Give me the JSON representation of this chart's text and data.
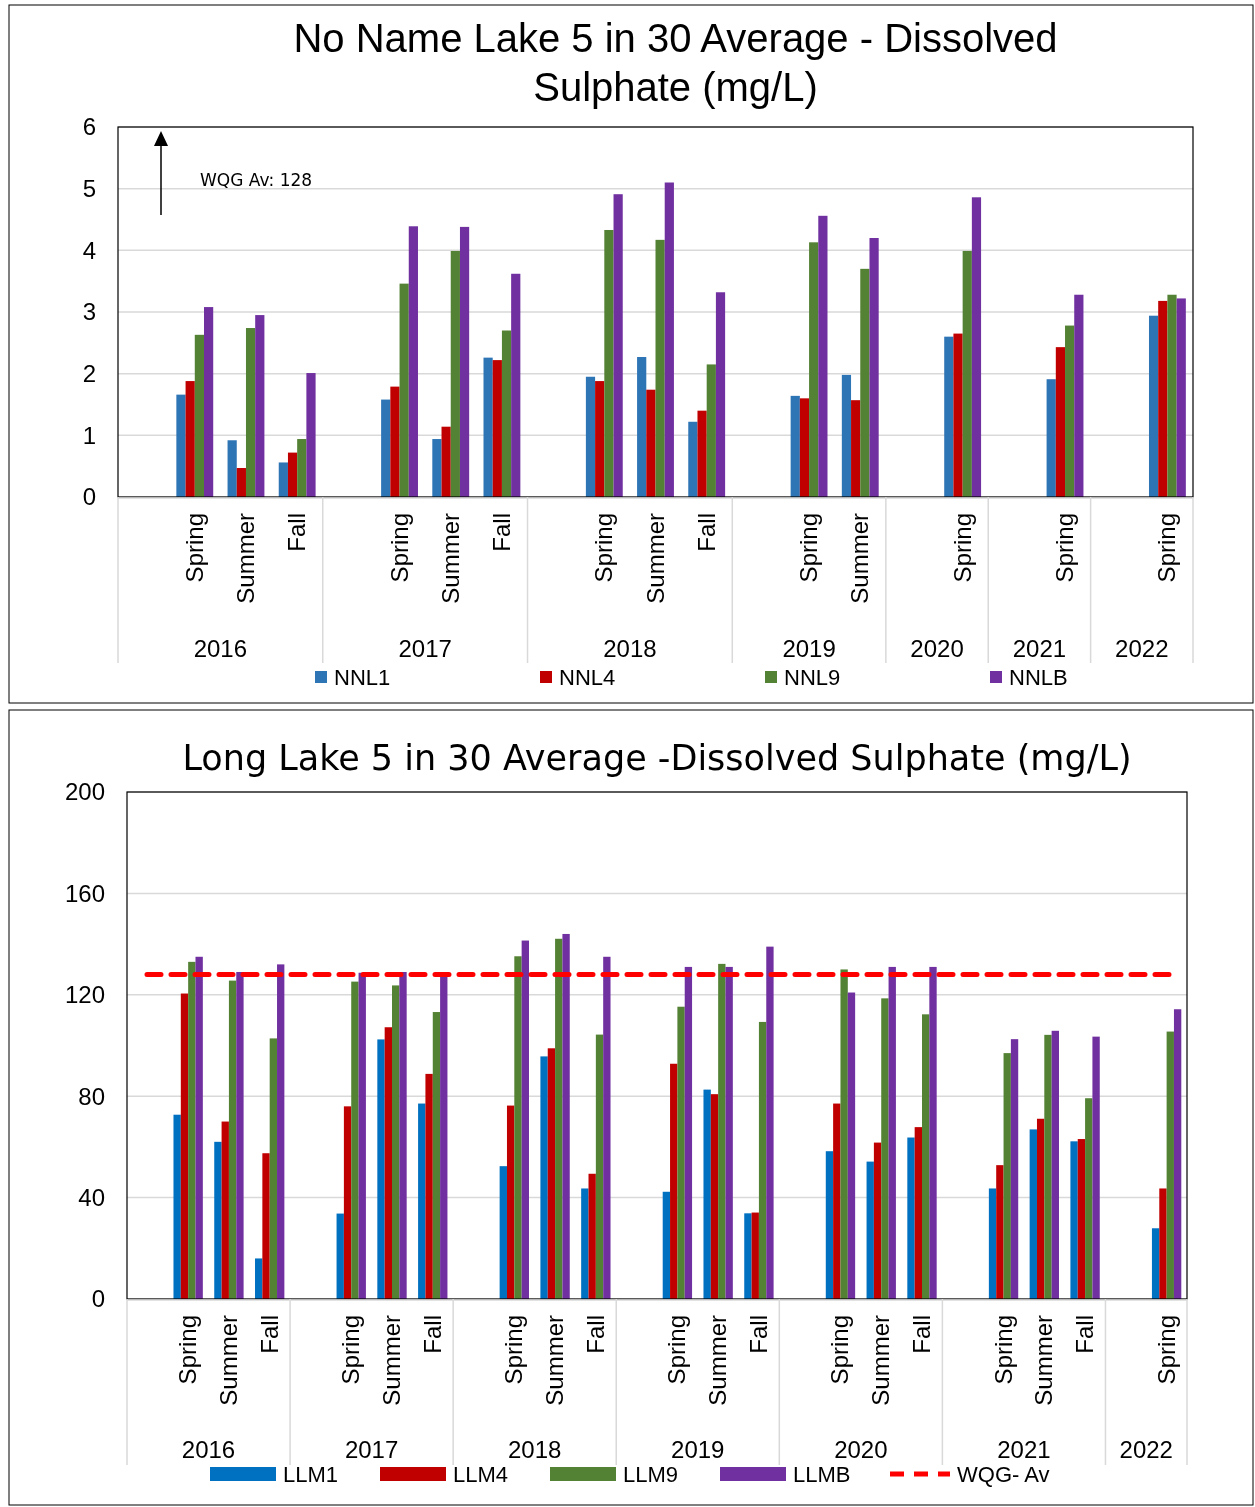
{
  "chart_data": [
    {
      "type": "bar",
      "title": "No Name Lake 5 in 30 Average - Dissolved Sulphate (mg/L)",
      "categories": [
        null,
        "Spring",
        "Summer",
        "Fall",
        null,
        "Spring",
        "Summer",
        "Fall",
        null,
        "Spring",
        "Summer",
        "Fall",
        null,
        "Spring",
        "Summer",
        null,
        "Spring",
        null,
        "Spring",
        null,
        "Spring"
      ],
      "series": [
        {
          "name": "NNL1",
          "color": "#2e75b6",
          "values": [
            null,
            1.66,
            0.92,
            0.56,
            null,
            1.58,
            0.94,
            2.26,
            null,
            1.95,
            2.27,
            1.22,
            null,
            1.64,
            1.98,
            null,
            2.6,
            null,
            1.91,
            null,
            2.94
          ]
        },
        {
          "name": "NNL4",
          "color": "#c00000",
          "values": [
            null,
            1.88,
            0.47,
            0.72,
            null,
            1.79,
            1.14,
            2.22,
            null,
            1.88,
            1.74,
            1.4,
            null,
            1.6,
            1.57,
            null,
            2.65,
            null,
            2.43,
            null,
            3.18
          ]
        },
        {
          "name": "NNL9",
          "color": "#548235",
          "values": [
            null,
            2.63,
            2.74,
            0.94,
            null,
            3.46,
            3.99,
            2.7,
            null,
            4.33,
            4.17,
            2.15,
            null,
            4.13,
            3.7,
            null,
            3.99,
            null,
            2.78,
            null,
            3.28
          ]
        },
        {
          "name": "NNLB",
          "color": "#7030a0",
          "values": [
            null,
            3.08,
            2.95,
            2.01,
            null,
            4.39,
            4.38,
            3.62,
            null,
            4.91,
            5.1,
            3.32,
            null,
            4.56,
            4.2,
            null,
            4.86,
            null,
            3.28,
            null,
            3.22
          ]
        }
      ],
      "ylim": [
        0,
        6
      ],
      "yticks": [
        0,
        1,
        2,
        3,
        4,
        5,
        6
      ],
      "grid": "y",
      "legend": "bottom",
      "annotations": [
        "2016",
        "2017",
        "2018",
        "2019",
        "2020",
        "2021",
        "2022",
        "WQG Av: 128"
      ]
    },
    {
      "type": "bar",
      "title": "Long Lake 5 in 30 Average -Dissolved Sulphate (mg/L)",
      "categories": [
        null,
        "Spring",
        "Summer",
        "Fall",
        null,
        "Spring",
        "Summer",
        "Fall",
        null,
        "Spring",
        "Summer",
        "Fall",
        null,
        "Spring",
        "Summer",
        "Fall",
        null,
        "Spring",
        "Summer",
        "Fall",
        null,
        "Spring",
        "Summer",
        "Fall",
        null,
        "Spring"
      ],
      "series": [
        {
          "name": "LLM1",
          "color": "#0070c0",
          "values": [
            null,
            72.7,
            62,
            16,
            null,
            33.7,
            102.4,
            77.1,
            null,
            52.4,
            95.7,
            43.6,
            null,
            42.3,
            82.6,
            33.8,
            null,
            58.3,
            54.2,
            63.7,
            null,
            43.6,
            66.9,
            62.2,
            null,
            27.9
          ]
        },
        {
          "name": "LLM4",
          "color": "#c00000",
          "values": [
            null,
            120.5,
            70,
            57.5,
            null,
            76,
            107.2,
            88.8,
            null,
            76.3,
            98.9,
            49.4,
            null,
            92.8,
            80.8,
            34.1,
            null,
            77.1,
            61.7,
            67.8,
            null,
            52.8,
            71.1,
            63.1,
            null,
            43.6
          ]
        },
        {
          "name": "LLM9",
          "color": "#548235",
          "values": [
            null,
            133,
            125.6,
            102.8,
            null,
            125.2,
            123.7,
            113.2,
            null,
            135.2,
            142.1,
            104.3,
            null,
            115.3,
            132.2,
            109.3,
            null,
            130,
            118.6,
            112.3,
            null,
            97,
            104.2,
            79.2,
            null,
            105.5
          ]
        },
        {
          "name": "LLMB",
          "color": "#7030a0",
          "values": [
            null,
            135,
            129,
            132,
            null,
            128.7,
            129,
            128,
            null,
            141.4,
            144,
            135,
            null,
            131,
            131,
            139,
            null,
            120.9,
            131,
            131,
            null,
            102.5,
            105.8,
            103.5,
            null,
            114.3
          ]
        }
      ],
      "ylim": [
        0,
        200
      ],
      "yticks": [
        0,
        40,
        80,
        120,
        160,
        200
      ],
      "grid": "y",
      "legend": "bottom",
      "ref_lines": [
        {
          "axis": "y",
          "value": 128,
          "label": "WQG- Av",
          "color": "#ff0000",
          "line_style": "dashed"
        }
      ],
      "annotations": [
        "2016",
        "2017",
        "2018",
        "2019",
        "2020",
        "2021",
        "2022"
      ]
    }
  ]
}
